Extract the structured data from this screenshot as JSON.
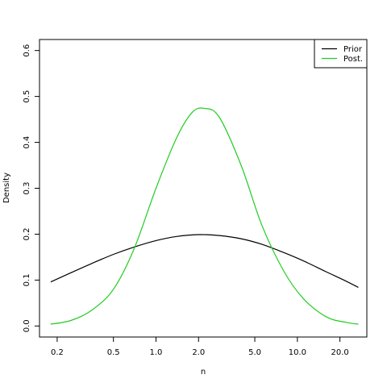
{
  "chart_data": {
    "type": "line",
    "title": "",
    "xlabel": "n",
    "ylabel": "Density",
    "x_scale": "log",
    "xlim": [
      0.15,
      31
    ],
    "ylim": [
      -0.024,
      0.624
    ],
    "x_ticks": [
      {
        "value": 0.2,
        "label": "0.2"
      },
      {
        "value": 0.5,
        "label": "0.5"
      },
      {
        "value": 1.0,
        "label": "1.0"
      },
      {
        "value": 2.0,
        "label": "2.0"
      },
      {
        "value": 5.0,
        "label": "5.0"
      },
      {
        "value": 10.0,
        "label": "10.0"
      },
      {
        "value": 20.0,
        "label": "20.0"
      }
    ],
    "y_ticks": [
      {
        "value": 0.0,
        "label": "0.0"
      },
      {
        "value": 0.1,
        "label": "0.1"
      },
      {
        "value": 0.2,
        "label": "0.2"
      },
      {
        "value": 0.3,
        "label": "0.3"
      },
      {
        "value": 0.4,
        "label": "0.4"
      },
      {
        "value": 0.5,
        "label": "0.5"
      },
      {
        "value": 0.6,
        "label": "0.6"
      }
    ],
    "grid": false,
    "legend": "top-right",
    "series": [
      {
        "name": "Prior",
        "color": "#000000",
        "x": [
          0.18,
          0.25,
          0.35,
          0.5,
          0.7,
          1.0,
          1.4,
          2.0,
          2.8,
          4.0,
          5.6,
          8.0,
          11.0,
          16.0,
          22.0,
          27.0
        ],
        "y": [
          0.096,
          0.116,
          0.136,
          0.156,
          0.172,
          0.186,
          0.195,
          0.199,
          0.197,
          0.19,
          0.178,
          0.16,
          0.142,
          0.118,
          0.098,
          0.084
        ]
      },
      {
        "name": "Post.",
        "color": "#22cc22",
        "x": [
          0.18,
          0.25,
          0.35,
          0.5,
          0.7,
          1.0,
          1.4,
          1.8,
          2.2,
          2.8,
          4.0,
          5.6,
          8.0,
          11.0,
          16.0,
          22.0,
          27.0
        ],
        "y": [
          0.004,
          0.012,
          0.034,
          0.08,
          0.168,
          0.3,
          0.41,
          0.465,
          0.474,
          0.455,
          0.35,
          0.22,
          0.12,
          0.06,
          0.02,
          0.008,
          0.004
        ]
      }
    ]
  }
}
